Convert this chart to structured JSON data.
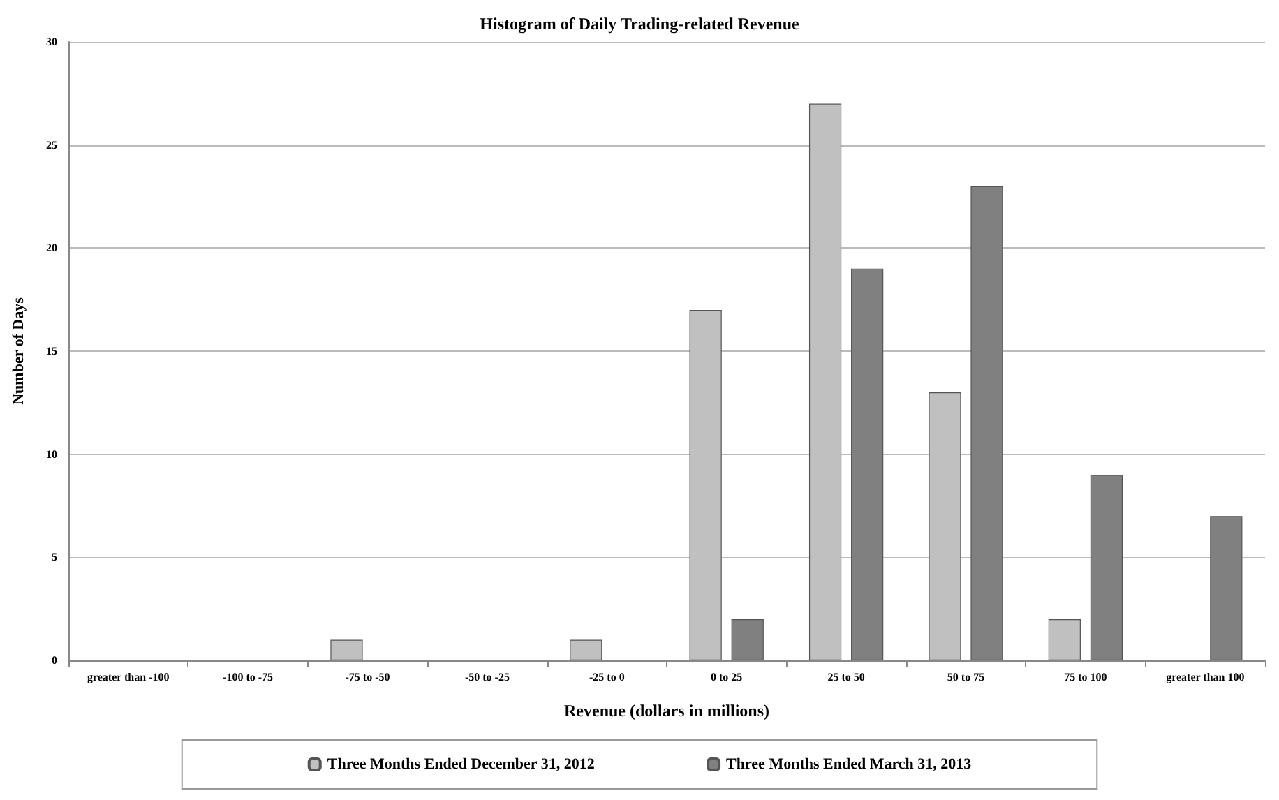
{
  "chart_data": {
    "type": "bar",
    "title": "Histogram of Daily Trading-related Revenue",
    "xlabel": "Revenue (dollars in millions)",
    "ylabel": "Number of Days",
    "categories": [
      "greater than -100",
      "-100 to -75",
      "-75 to -50",
      "-50 to -25",
      "-25 to 0",
      "0 to 25",
      "25 to 50",
      "50 to 75",
      "75 to 100",
      "greater than 100"
    ],
    "series": [
      {
        "name": "Three Months Ended December 31, 2012",
        "color": "#c0c0c0",
        "values": [
          0,
          0,
          1,
          0,
          1,
          17,
          27,
          13,
          2,
          0
        ]
      },
      {
        "name": "Three Months Ended March 31, 2013",
        "color": "#808080",
        "values": [
          0,
          0,
          0,
          0,
          0,
          2,
          19,
          23,
          9,
          7
        ]
      }
    ],
    "ylim": [
      0,
      30
    ],
    "yticks": [
      0,
      5,
      10,
      15,
      20,
      25,
      30
    ],
    "grid": "y",
    "legend": "bottom"
  }
}
